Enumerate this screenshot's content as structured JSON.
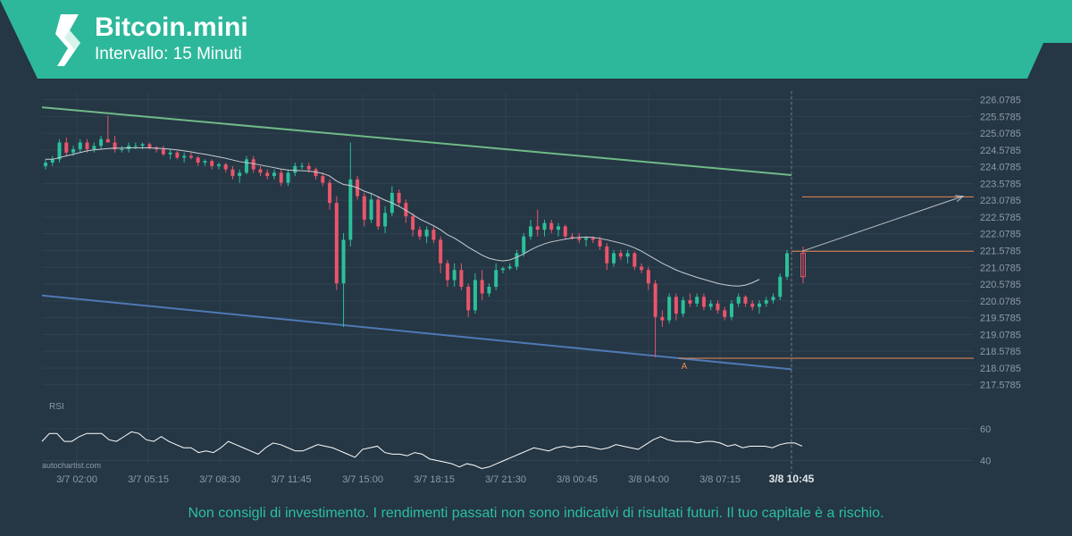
{
  "header": {
    "title": "Bitcoin.mini",
    "subtitle": "Intervallo: 15 Minuti",
    "banner_color": "#2db89b"
  },
  "footer": {
    "disclaimer": "Non consigli di investimento. I rendimenti passati non sono indicativi di risultati futuri. Il tuo capitale è a rischio."
  },
  "watermark": "autochartist.com",
  "chart_data": {
    "type": "candlestick",
    "ylim": [
      217.2785,
      226.2785
    ],
    "y_ticks": [
      226.0785,
      225.5785,
      225.0785,
      224.5785,
      224.0785,
      223.5785,
      223.0785,
      222.5785,
      222.0785,
      221.5785,
      221.0785,
      220.5785,
      220.0785,
      219.5785,
      219.0785,
      218.5785,
      218.0785,
      217.5785
    ],
    "y_tick_labels": [
      "226.0785",
      "225.5785",
      "225.0785",
      "224.5785",
      "224.0785",
      "223.5785",
      "223.0785",
      "222.5785",
      "222.0785",
      "221.5785",
      "221.0785",
      "220.5785",
      "220.0785",
      "219.5785",
      "219.0785",
      "218.5785",
      "218.0785",
      "217.5785"
    ],
    "x_tick_labels": [
      "3/7 02:00",
      "3/7 05:15",
      "3/7 08:30",
      "3/7 11:45",
      "3/7 15:00",
      "3/7 18:15",
      "3/7 21:30",
      "3/8 00:45",
      "3/8 04:00",
      "3/8 07:15",
      "3/8 10:45"
    ],
    "current_x_label": "3/8 10:45",
    "grid": true,
    "channel": {
      "upper_start": 225.85,
      "upper_end": 223.83,
      "lower_start": 220.24,
      "lower_end": 218.04,
      "upper_color": "#6fba87",
      "lower_color": "#4f79b5"
    },
    "levels": [
      {
        "value": 221.56,
        "color": "#e98a55"
      },
      {
        "value": 223.18,
        "color": "#e98a55"
      },
      {
        "value": 218.37,
        "color": "#e98a55"
      }
    ],
    "projection": {
      "from": 221.56,
      "to": 223.2,
      "color": "#b9bfc4"
    },
    "point_label": "A",
    "colors": {
      "up": "#2bbf9a",
      "down": "#e9556b",
      "ma": "#c9ced3",
      "grid": "#2f4352",
      "axis_text": "#8e9ba6"
    },
    "candles": [
      [
        224.1,
        224.3,
        224.0,
        224.2
      ],
      [
        224.2,
        224.4,
        224.1,
        224.3
      ],
      [
        224.3,
        224.9,
        224.2,
        224.8
      ],
      [
        224.8,
        224.95,
        224.4,
        224.5
      ],
      [
        224.5,
        224.7,
        224.4,
        224.6
      ],
      [
        224.6,
        224.9,
        224.5,
        224.8
      ],
      [
        224.8,
        224.9,
        224.5,
        224.6
      ],
      [
        224.6,
        224.8,
        224.5,
        224.7
      ],
      [
        224.7,
        225.0,
        224.6,
        224.9
      ],
      [
        224.9,
        225.6,
        224.8,
        224.8
      ],
      [
        224.8,
        225.0,
        224.5,
        224.6
      ],
      [
        224.6,
        224.7,
        224.5,
        224.6
      ],
      [
        224.6,
        224.8,
        224.5,
        224.7
      ],
      [
        224.7,
        224.8,
        224.6,
        224.7
      ],
      [
        224.7,
        224.8,
        224.6,
        224.75
      ],
      [
        224.75,
        224.8,
        224.6,
        224.65
      ],
      [
        224.65,
        224.7,
        224.5,
        224.6
      ],
      [
        224.6,
        224.7,
        224.4,
        224.45
      ],
      [
        224.45,
        224.6,
        224.3,
        224.5
      ],
      [
        224.5,
        224.55,
        224.3,
        224.35
      ],
      [
        224.35,
        224.5,
        224.2,
        224.4
      ],
      [
        224.4,
        224.5,
        224.3,
        224.35
      ],
      [
        224.35,
        224.4,
        224.1,
        224.2
      ],
      [
        224.2,
        224.3,
        224.1,
        224.25
      ],
      [
        224.25,
        224.3,
        224.0,
        224.1
      ],
      [
        224.1,
        224.2,
        224.0,
        224.15
      ],
      [
        224.15,
        224.2,
        223.9,
        224.0
      ],
      [
        224.0,
        224.1,
        223.7,
        223.8
      ],
      [
        223.8,
        224.0,
        223.6,
        223.9
      ],
      [
        223.9,
        224.4,
        223.85,
        224.3
      ],
      [
        224.3,
        224.4,
        223.9,
        224.0
      ],
      [
        224.0,
        224.1,
        223.8,
        223.9
      ],
      [
        223.9,
        224.0,
        223.7,
        223.8
      ],
      [
        223.8,
        224.0,
        223.7,
        223.9
      ],
      [
        223.9,
        224.0,
        223.5,
        223.6
      ],
      [
        223.6,
        224.0,
        223.5,
        223.9
      ],
      [
        223.9,
        224.2,
        223.8,
        224.1
      ],
      [
        224.1,
        224.2,
        224.0,
        224.1
      ],
      [
        224.1,
        224.2,
        223.9,
        224.0
      ],
      [
        224.0,
        224.05,
        223.7,
        223.8
      ],
      [
        223.8,
        223.9,
        223.5,
        223.6
      ],
      [
        223.6,
        223.7,
        222.8,
        223.0
      ],
      [
        223.0,
        223.2,
        220.4,
        220.6
      ],
      [
        220.6,
        222.1,
        219.3,
        221.9
      ],
      [
        221.9,
        224.8,
        221.7,
        223.7
      ],
      [
        223.7,
        223.8,
        223.1,
        223.2
      ],
      [
        223.2,
        223.3,
        222.3,
        222.5
      ],
      [
        222.5,
        223.3,
        222.4,
        223.1
      ],
      [
        223.1,
        223.2,
        222.2,
        222.3
      ],
      [
        222.3,
        222.9,
        222.1,
        222.7
      ],
      [
        222.7,
        223.5,
        222.6,
        223.3
      ],
      [
        223.3,
        223.4,
        222.9,
        223.0
      ],
      [
        223.0,
        223.1,
        222.4,
        222.6
      ],
      [
        222.6,
        222.7,
        222.0,
        222.2
      ],
      [
        222.2,
        222.3,
        221.9,
        222.0
      ],
      [
        222.0,
        222.3,
        221.8,
        222.2
      ],
      [
        222.2,
        222.3,
        221.8,
        221.9
      ],
      [
        221.9,
        222.0,
        220.9,
        221.2
      ],
      [
        221.2,
        221.3,
        220.5,
        220.7
      ],
      [
        220.7,
        221.2,
        220.5,
        221.0
      ],
      [
        221.0,
        221.2,
        220.4,
        220.5
      ],
      [
        220.5,
        220.6,
        219.6,
        219.8
      ],
      [
        219.8,
        220.9,
        219.7,
        220.7
      ],
      [
        220.7,
        221.0,
        220.1,
        220.3
      ],
      [
        220.3,
        220.6,
        220.2,
        220.5
      ],
      [
        220.5,
        221.2,
        220.4,
        221.0
      ],
      [
        221.0,
        221.1,
        220.9,
        221.05
      ],
      [
        221.05,
        221.2,
        221.0,
        221.1
      ],
      [
        221.1,
        221.6,
        221.0,
        221.5
      ],
      [
        221.5,
        222.1,
        221.4,
        222.0
      ],
      [
        222.0,
        222.5,
        221.9,
        222.3
      ],
      [
        222.3,
        222.8,
        222.0,
        222.2
      ],
      [
        222.2,
        222.5,
        222.0,
        222.4
      ],
      [
        222.4,
        222.5,
        222.1,
        222.2
      ],
      [
        222.2,
        222.4,
        222.0,
        222.3
      ],
      [
        222.3,
        222.35,
        221.9,
        222.0
      ],
      [
        222.0,
        222.1,
        221.9,
        221.95
      ],
      [
        221.95,
        222.1,
        221.8,
        221.9
      ],
      [
        221.9,
        222.0,
        221.7,
        221.95
      ],
      [
        221.95,
        222.0,
        221.8,
        221.9
      ],
      [
        221.9,
        222.0,
        221.6,
        221.7
      ],
      [
        221.7,
        221.8,
        221.0,
        221.2
      ],
      [
        221.2,
        221.6,
        221.1,
        221.5
      ],
      [
        221.5,
        221.6,
        221.3,
        221.4
      ],
      [
        221.4,
        221.6,
        221.2,
        221.5
      ],
      [
        221.5,
        221.55,
        221.0,
        221.1
      ],
      [
        221.1,
        221.2,
        220.9,
        221.0
      ],
      [
        221.0,
        221.1,
        220.4,
        220.6
      ],
      [
        220.6,
        220.7,
        218.4,
        219.6
      ],
      [
        219.6,
        219.8,
        219.3,
        219.5
      ],
      [
        219.5,
        220.3,
        219.4,
        220.2
      ],
      [
        220.2,
        220.3,
        219.5,
        219.7
      ],
      [
        219.7,
        220.2,
        219.6,
        220.1
      ],
      [
        220.1,
        220.3,
        219.9,
        220.0
      ],
      [
        220.0,
        220.3,
        219.9,
        220.2
      ],
      [
        220.2,
        220.3,
        219.8,
        219.9
      ],
      [
        219.9,
        220.1,
        219.8,
        220.0
      ],
      [
        220.0,
        220.1,
        219.7,
        219.8
      ],
      [
        219.8,
        219.9,
        219.5,
        219.6
      ],
      [
        219.6,
        220.1,
        219.5,
        220.0
      ],
      [
        220.0,
        220.3,
        219.9,
        220.2
      ],
      [
        220.2,
        220.25,
        219.9,
        220.0
      ],
      [
        220.0,
        220.1,
        219.8,
        219.9
      ],
      [
        219.9,
        220.1,
        219.7,
        220.0
      ],
      [
        220.0,
        220.2,
        219.9,
        220.1
      ],
      [
        220.1,
        220.3,
        220.0,
        220.2
      ],
      [
        220.2,
        220.9,
        220.1,
        220.8
      ],
      [
        220.8,
        221.6,
        220.7,
        221.5
      ]
    ],
    "current_candle": [
      221.5,
      221.7,
      220.6,
      220.8
    ],
    "ma_values": [
      224.3,
      224.3,
      224.35,
      224.4,
      224.45,
      224.5,
      224.55,
      224.58,
      224.6,
      224.62,
      224.63,
      224.63,
      224.64,
      224.64,
      224.64,
      224.64,
      224.63,
      224.62,
      224.6,
      224.58,
      224.55,
      224.52,
      224.48,
      224.45,
      224.41,
      224.37,
      224.33,
      224.28,
      224.23,
      224.2,
      224.17,
      224.13,
      224.09,
      224.05,
      224.01,
      223.98,
      223.97,
      223.96,
      223.95,
      223.92,
      223.88,
      223.8,
      223.65,
      223.55,
      223.52,
      223.45,
      223.35,
      223.28,
      223.18,
      223.08,
      223.0,
      222.9,
      222.78,
      222.65,
      222.52,
      222.42,
      222.32,
      222.2,
      222.05,
      221.95,
      221.82,
      221.68,
      221.56,
      221.44,
      221.35,
      221.3,
      221.27,
      221.3,
      221.38,
      221.48,
      221.6,
      221.7,
      221.78,
      221.84,
      221.88,
      221.92,
      221.95,
      221.97,
      221.98,
      221.97,
      221.94,
      221.9,
      221.85,
      221.8,
      221.74,
      221.66,
      221.56,
      221.44,
      221.32,
      221.2,
      221.1,
      221.0,
      220.92,
      220.85,
      220.78,
      220.72,
      220.66,
      220.6,
      220.56,
      220.53,
      220.52,
      220.55,
      220.62,
      220.72
    ],
    "rsi": {
      "label": "RSI",
      "y_ticks": [
        60,
        40
      ],
      "y_tick_labels": [
        "60",
        "40"
      ],
      "ylim": [
        33,
        70
      ],
      "values": [
        52,
        57,
        57,
        52,
        52,
        55,
        57,
        57,
        57,
        53,
        52,
        55,
        58,
        57,
        53,
        52,
        55,
        52,
        50,
        48,
        48,
        45,
        46,
        45,
        48,
        52,
        50,
        48,
        46,
        44,
        48,
        51,
        50,
        48,
        46,
        46,
        48,
        50,
        49,
        48,
        46,
        44,
        42,
        47,
        48,
        49,
        45,
        44,
        44,
        43,
        45,
        44,
        41,
        40,
        39,
        38,
        36,
        38,
        37,
        35,
        36,
        38,
        40,
        42,
        44,
        46,
        48,
        47,
        46,
        48,
        49,
        48,
        49,
        49,
        48,
        47,
        48,
        50,
        49,
        48,
        47,
        50,
        53,
        55,
        53,
        52,
        52,
        52,
        51,
        52,
        52,
        51,
        49,
        50,
        48,
        49,
        49,
        49,
        48,
        50,
        51,
        51,
        49
      ]
    }
  }
}
